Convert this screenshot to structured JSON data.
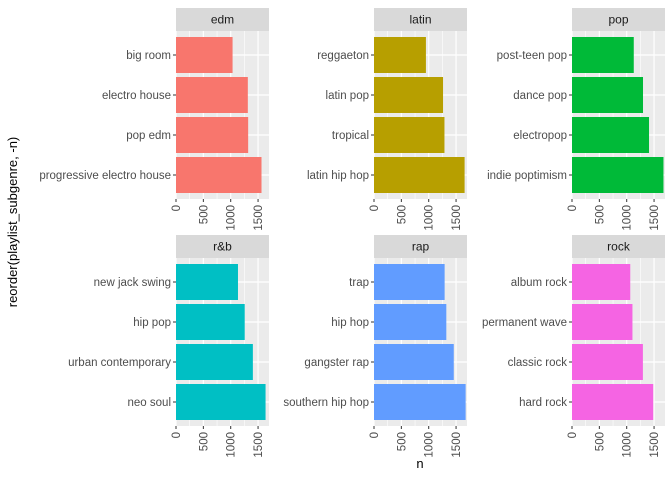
{
  "chart_data": {
    "type": "bar",
    "orientation": "horizontal",
    "xlabel": "n",
    "ylabel": "reorder(playlist_subgenre, -n)",
    "xlim": [
      0,
      1700
    ],
    "x_ticks": [
      0,
      500,
      1000,
      1500
    ],
    "grid": true,
    "legend": "none",
    "panels": [
      {
        "facet": "edm",
        "color": "#F8766D",
        "categories": [
          "big room",
          "electro house",
          "pop edm",
          "progressive electro house"
        ],
        "values": [
          1034,
          1313,
          1319,
          1563
        ]
      },
      {
        "facet": "latin",
        "color": "#B79F00",
        "categories": [
          "reggaeton",
          "latin pop",
          "tropical",
          "latin hip hop"
        ],
        "values": [
          949,
          1262,
          1288,
          1656
        ]
      },
      {
        "facet": "pop",
        "color": "#00BA38",
        "categories": [
          "post-teen pop",
          "dance pop",
          "electropop",
          "indie poptimism"
        ],
        "values": [
          1129,
          1298,
          1408,
          1672
        ]
      },
      {
        "facet": "r&b",
        "color": "#00BFC4",
        "categories": [
          "new jack swing",
          "hip pop",
          "urban contemporary",
          "neo soul"
        ],
        "values": [
          1133,
          1256,
          1405,
          1637
        ]
      },
      {
        "facet": "rap",
        "color": "#619CFF",
        "categories": [
          "trap",
          "hip hop",
          "gangster rap",
          "southern hip hop"
        ],
        "values": [
          1291,
          1322,
          1458,
          1675
        ]
      },
      {
        "facet": "rock",
        "color": "#F564E3",
        "categories": [
          "album rock",
          "permanent wave",
          "classic rock",
          "hard rock"
        ],
        "values": [
          1065,
          1105,
          1296,
          1485
        ]
      }
    ]
  }
}
